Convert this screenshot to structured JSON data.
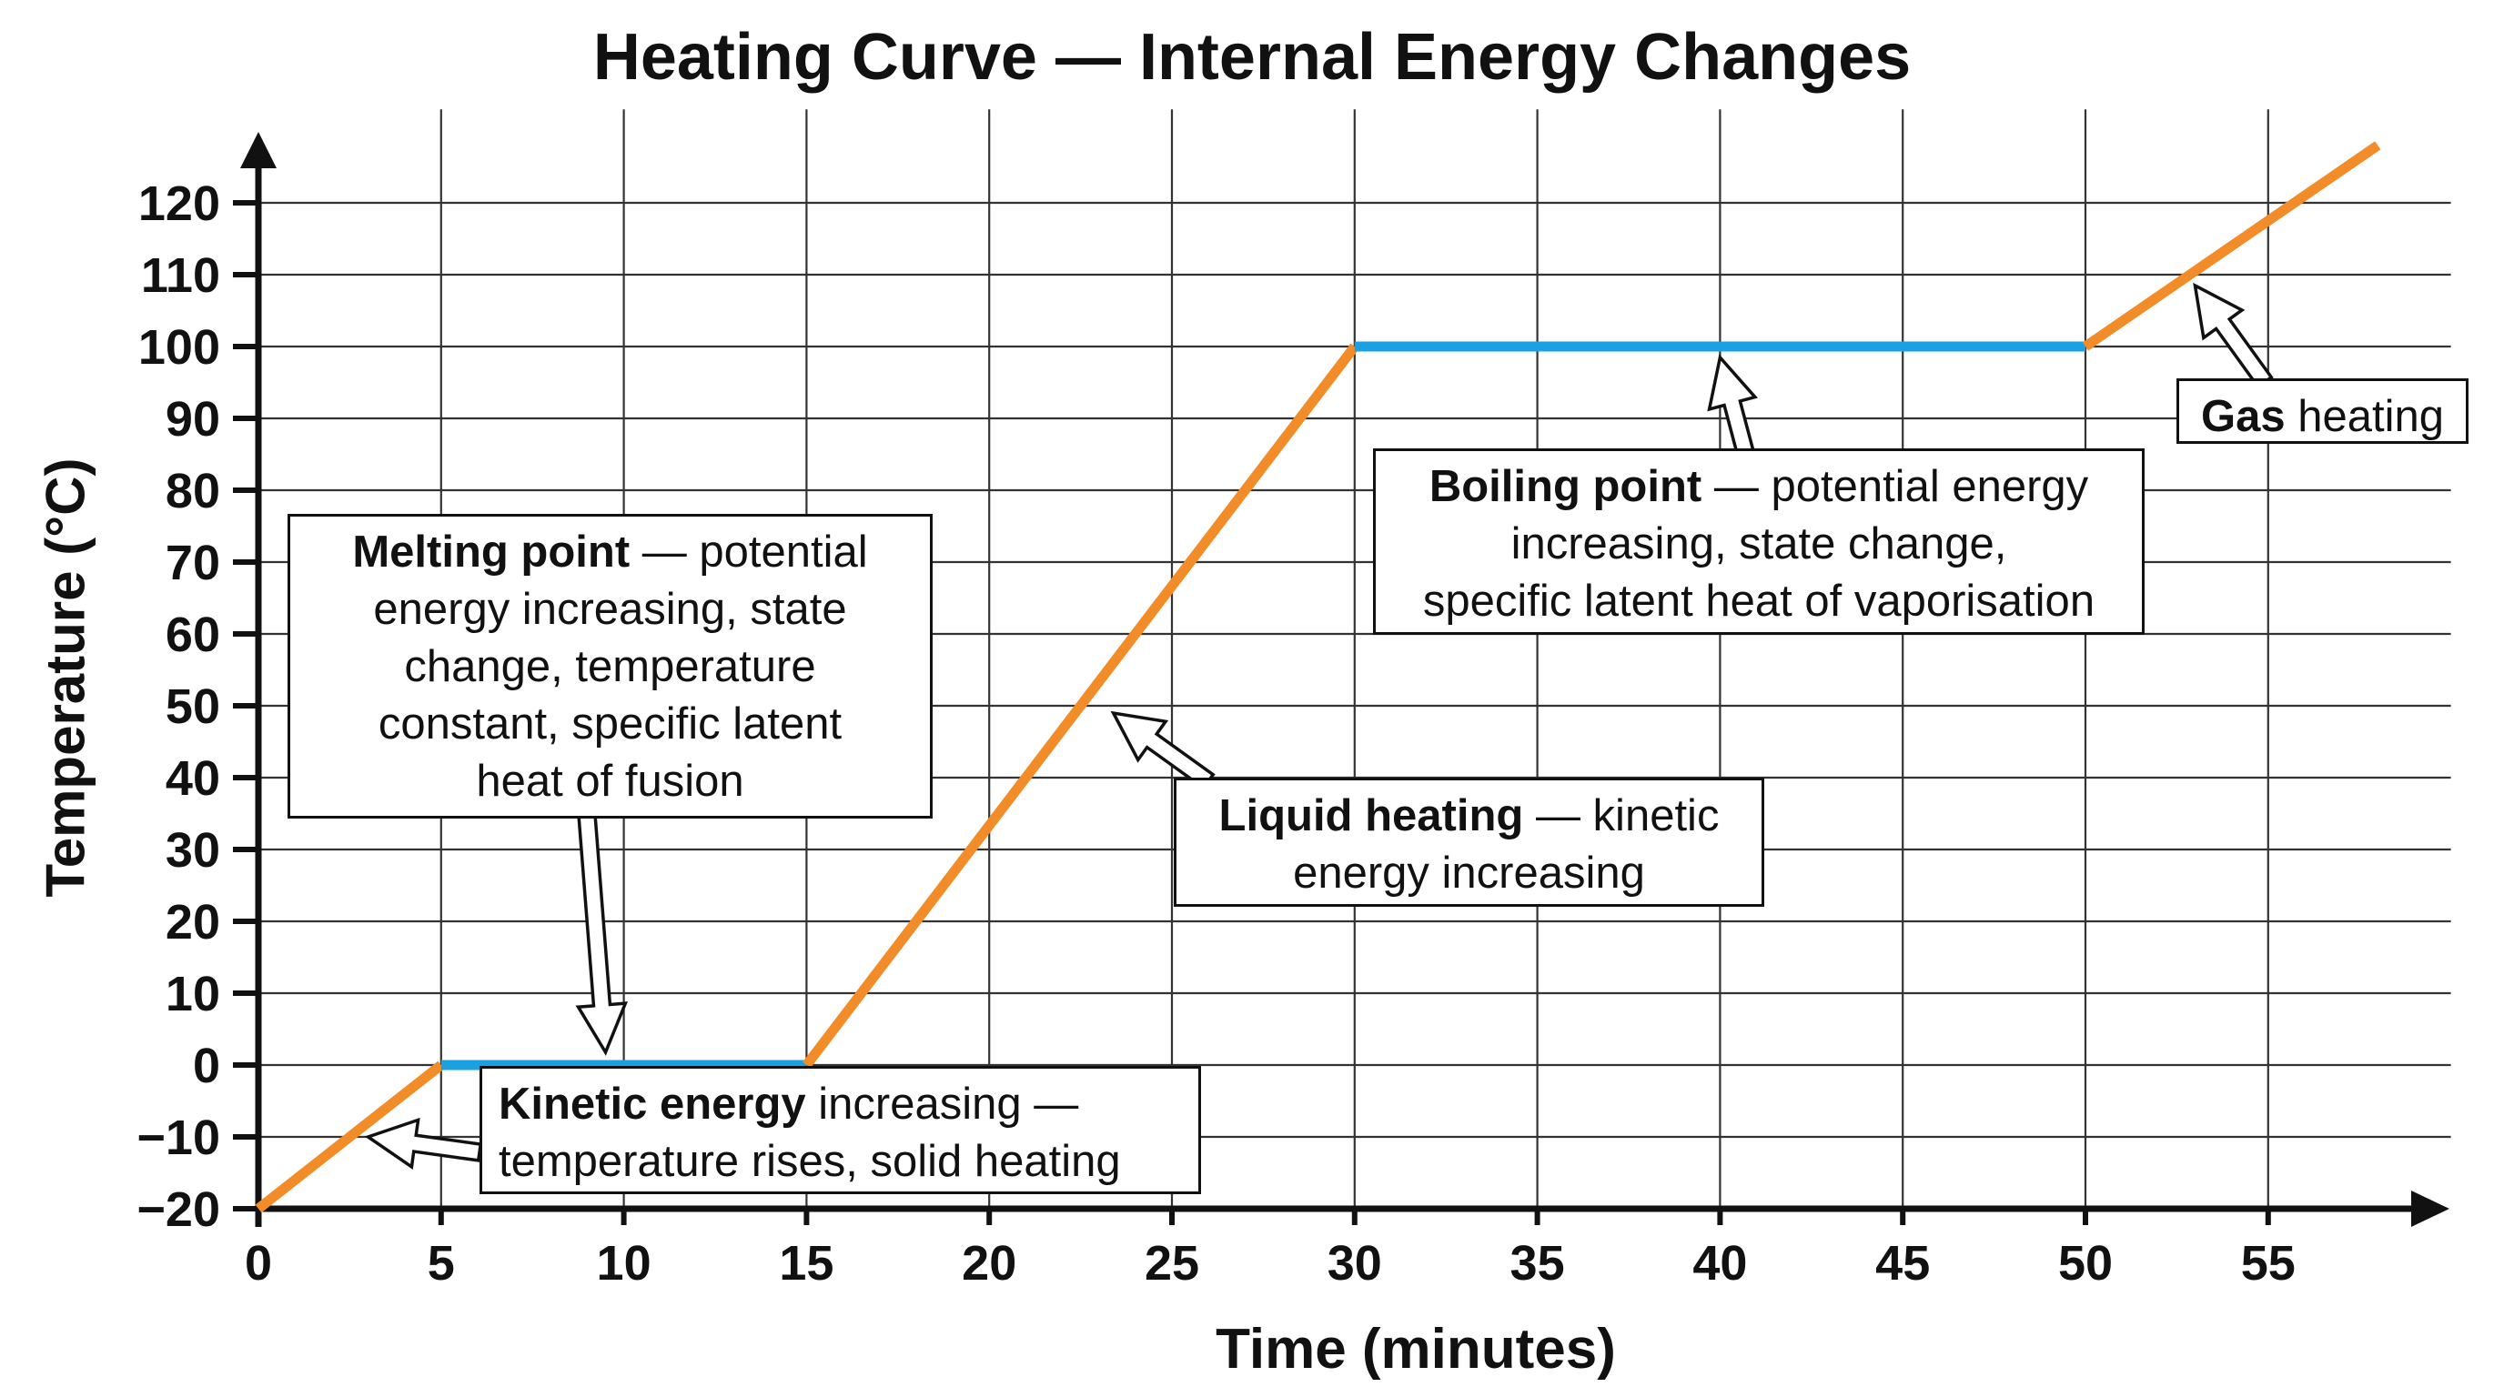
{
  "chart_data": {
    "type": "line",
    "title": "Heating Curve — Internal Energy Changes",
    "xlabel": "Time (minutes)",
    "ylabel": "Temperature (°C)",
    "xlim": [
      0,
      60
    ],
    "ylim": [
      -20,
      130
    ],
    "x_ticks": [
      0,
      5,
      10,
      15,
      20,
      25,
      30,
      35,
      40,
      45,
      50,
      55
    ],
    "y_ticks": [
      -20,
      -10,
      0,
      10,
      20,
      30,
      40,
      50,
      60,
      70,
      80,
      90,
      100,
      110,
      120
    ],
    "grid": true,
    "segments": [
      {
        "phase": "solid heating",
        "color": "#F28C28",
        "points": [
          [
            0,
            -20
          ],
          [
            5,
            0
          ]
        ]
      },
      {
        "phase": "melting",
        "color": "#1BA1E2",
        "points": [
          [
            5,
            0
          ],
          [
            15,
            0
          ]
        ]
      },
      {
        "phase": "liquid heating",
        "color": "#F28C28",
        "points": [
          [
            15,
            0
          ],
          [
            30,
            100
          ]
        ]
      },
      {
        "phase": "boiling",
        "color": "#1BA1E2",
        "points": [
          [
            30,
            100
          ],
          [
            50,
            100
          ]
        ]
      },
      {
        "phase": "gas heating",
        "color": "#F28C28",
        "points": [
          [
            50,
            100
          ],
          [
            58,
            128
          ]
        ]
      }
    ],
    "annotations": [
      {
        "lines": [
          [
            {
              "b": "Melting point"
            },
            {
              "t": " — potential"
            }
          ],
          [
            {
              "t": "energy increasing, state"
            }
          ],
          [
            {
              "t": "change, temperature"
            }
          ],
          [
            {
              "t": "constant, specific latent"
            }
          ],
          [
            {
              "t": "heat of fusion"
            }
          ]
        ],
        "target": [
          9.5,
          0
        ]
      },
      {
        "lines": [
          [
            {
              "b": "Kinetic energy"
            },
            {
              "t": " increasing —"
            }
          ],
          [
            {
              "t": "temperature rises, solid heating"
            }
          ]
        ],
        "target": [
          3,
          -10
        ]
      },
      {
        "lines": [
          [
            {
              "b": "Liquid heating"
            },
            {
              "t": " — kinetic"
            }
          ],
          [
            {
              "t": "energy increasing"
            }
          ]
        ],
        "target": [
          23,
          50
        ]
      },
      {
        "lines": [
          [
            {
              "b": "Boiling point"
            },
            {
              "t": " — potential energy"
            }
          ],
          [
            {
              "t": "increasing, state change,"
            }
          ],
          [
            {
              "t": "specific latent heat of vaporisation"
            }
          ]
        ],
        "target": [
          40,
          100
        ]
      },
      {
        "lines": [
          [
            {
              "b": "Gas"
            },
            {
              "t": " heating"
            }
          ]
        ],
        "target": [
          53,
          110
        ]
      }
    ]
  }
}
